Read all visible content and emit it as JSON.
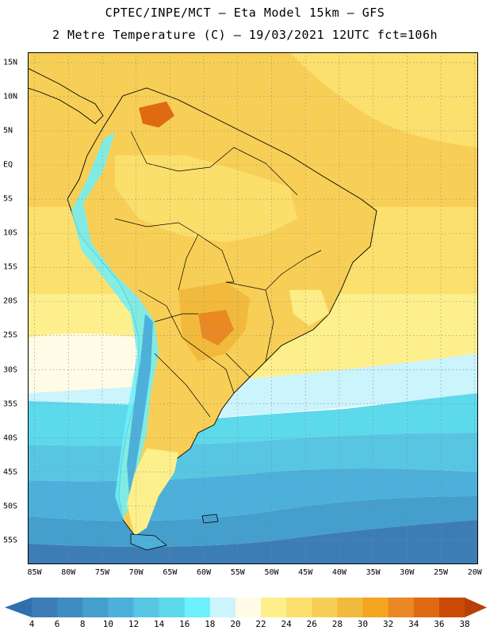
{
  "header": {
    "title_line1": "CPTEC/INPE/MCT – Eta Model 15km – GFS",
    "title_line2": "2 Metre Temperature (C) – 19/03/2021 12UTC fct=106h"
  },
  "map": {
    "lat_labels": [
      {
        "text": "15N",
        "lat": 15
      },
      {
        "text": "10N",
        "lat": 10
      },
      {
        "text": "5N",
        "lat": 5
      },
      {
        "text": "EQ",
        "lat": 0
      },
      {
        "text": "5S",
        "lat": -5
      },
      {
        "text": "10S",
        "lat": -10
      },
      {
        "text": "15S",
        "lat": -15
      },
      {
        "text": "20S",
        "lat": -20
      },
      {
        "text": "25S",
        "lat": -25
      },
      {
        "text": "30S",
        "lat": -30
      },
      {
        "text": "35S",
        "lat": -35
      },
      {
        "text": "40S",
        "lat": -40
      },
      {
        "text": "45S",
        "lat": -45
      },
      {
        "text": "50S",
        "lat": -50
      },
      {
        "text": "55S",
        "lat": -55
      }
    ],
    "lon_labels": [
      {
        "text": "85W",
        "lon": -85
      },
      {
        "text": "80W",
        "lon": -80
      },
      {
        "text": "75W",
        "lon": -75
      },
      {
        "text": "70W",
        "lon": -70
      },
      {
        "text": "65W",
        "lon": -65
      },
      {
        "text": "60W",
        "lon": -60
      },
      {
        "text": "55W",
        "lon": -55
      },
      {
        "text": "50W",
        "lon": -50
      },
      {
        "text": "45W",
        "lon": -45
      },
      {
        "text": "40W",
        "lon": -40
      },
      {
        "text": "35W",
        "lon": -35
      },
      {
        "text": "30W",
        "lon": -30
      },
      {
        "text": "25W",
        "lon": -25
      },
      {
        "text": "20W",
        "lon": -20
      }
    ],
    "extent": {
      "lon_min": -86,
      "lon_max": -19.5,
      "lat_min": -58.5,
      "lat_max": 16.5
    }
  },
  "colorbar": {
    "labels": [
      "4",
      "6",
      "8",
      "10",
      "12",
      "14",
      "16",
      "18",
      "20",
      "22",
      "24",
      "26",
      "28",
      "30",
      "32",
      "34",
      "36",
      "38"
    ],
    "colors": [
      "#3d7db5",
      "#3f8cc3",
      "#449fcc",
      "#4cb0da",
      "#58c6e3",
      "#5dd9ec",
      "#6cf0fc",
      "#cbf4fc",
      "#fffbe6",
      "#fdf08c",
      "#fbe06e",
      "#f8cf56",
      "#f1ba3c",
      "#f3a51f",
      "#ea8824",
      "#e06a12",
      "#cb4a06"
    ],
    "low_color": "#2f6fae",
    "high_color": "#b84008"
  }
}
